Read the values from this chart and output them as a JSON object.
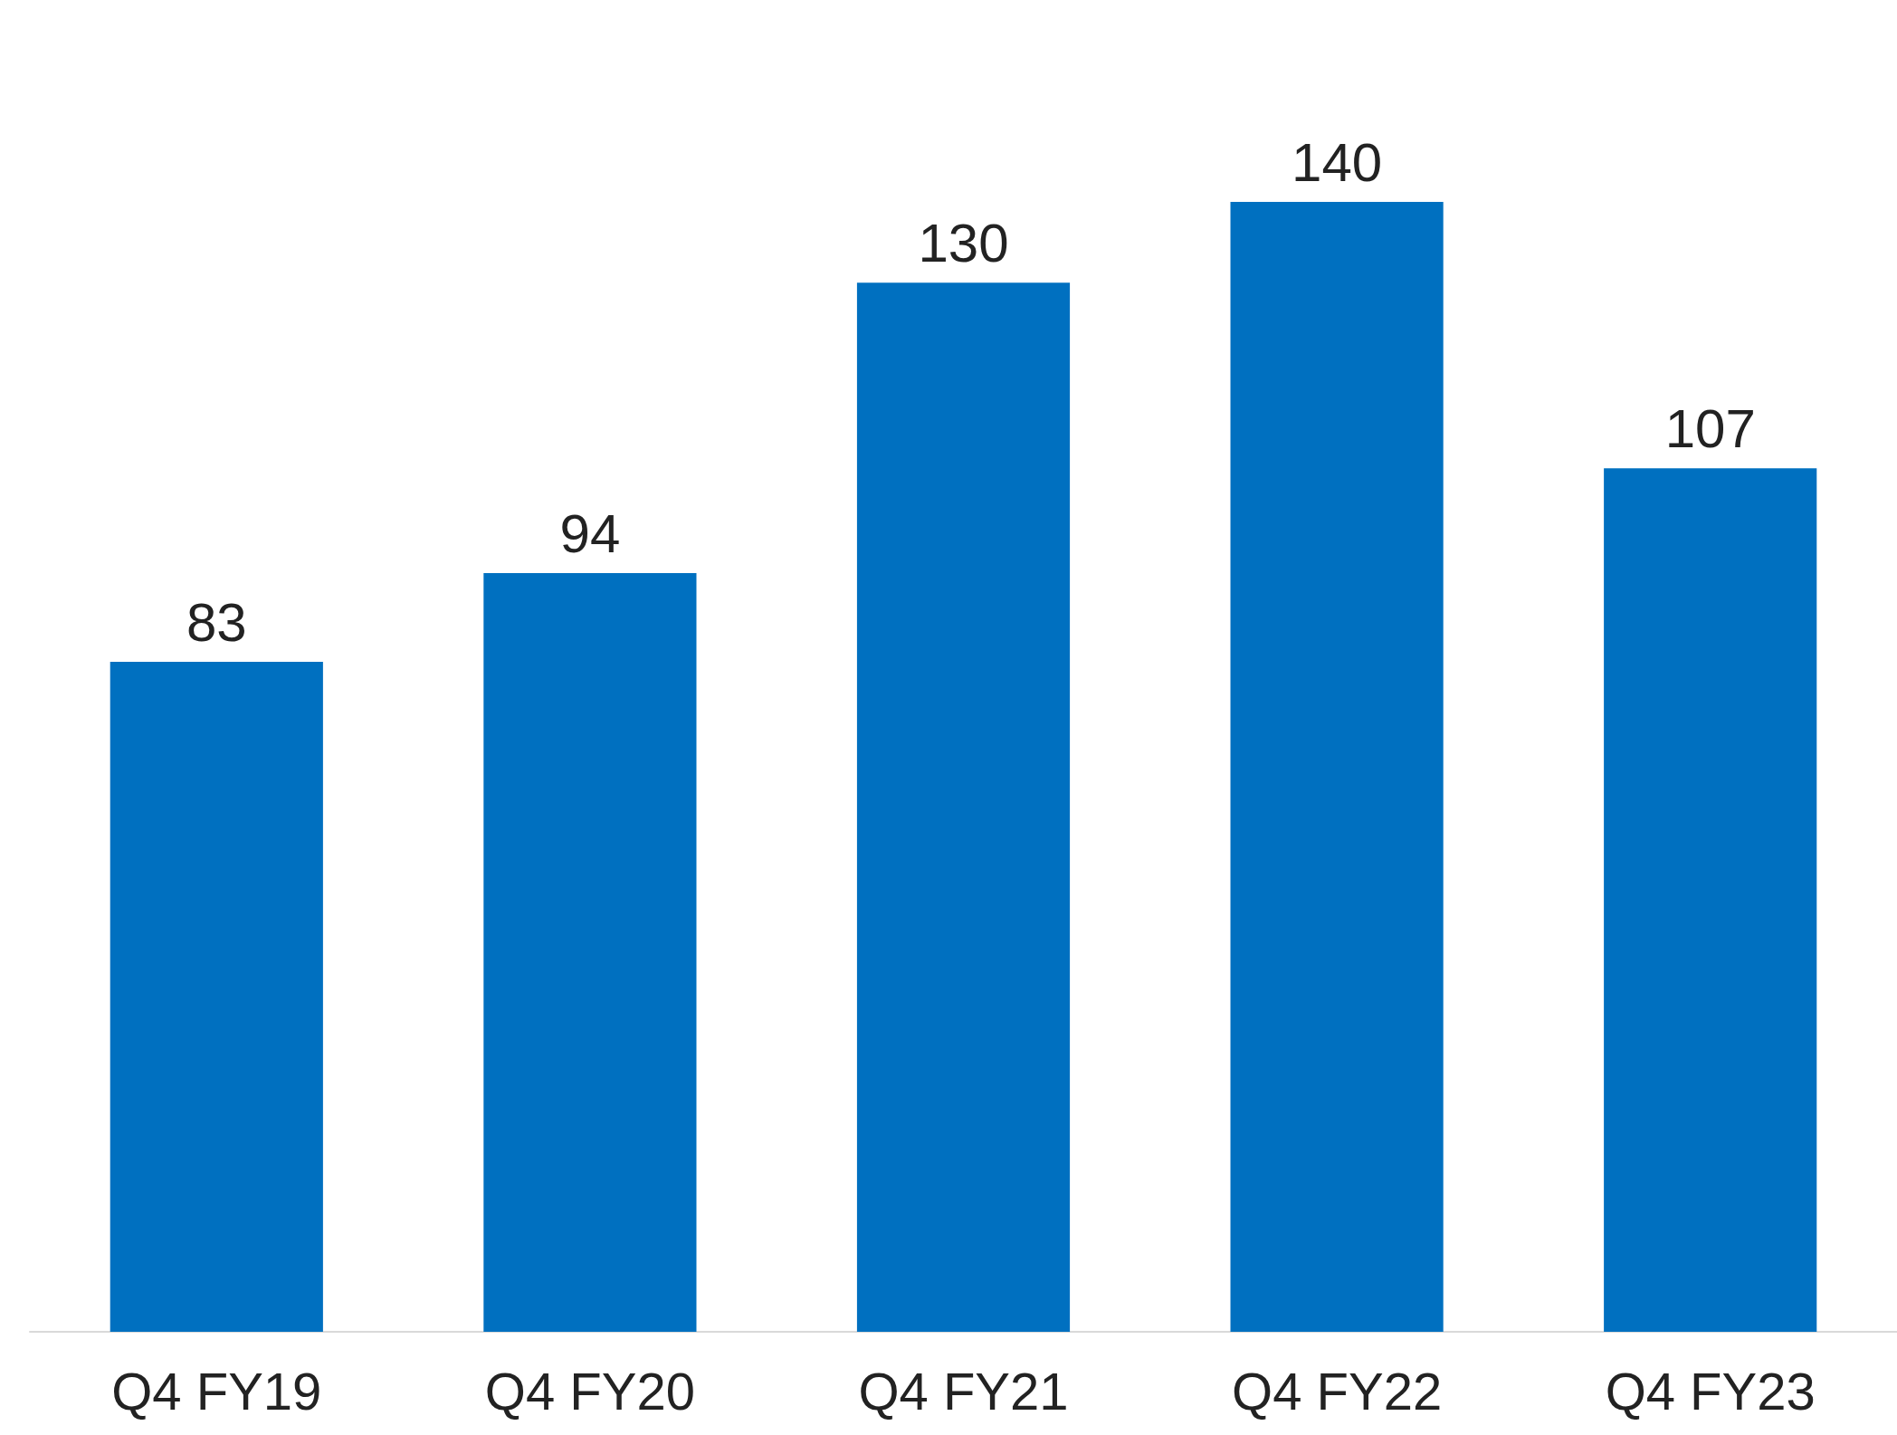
{
  "chart_data": {
    "type": "bar",
    "categories": [
      "Q4 FY19",
      "Q4 FY20",
      "Q4 FY21",
      "Q4 FY22",
      "Q4 FY23"
    ],
    "values": [
      83,
      94,
      130,
      140,
      107
    ],
    "color": "#0070c0",
    "data_labels": true
  }
}
